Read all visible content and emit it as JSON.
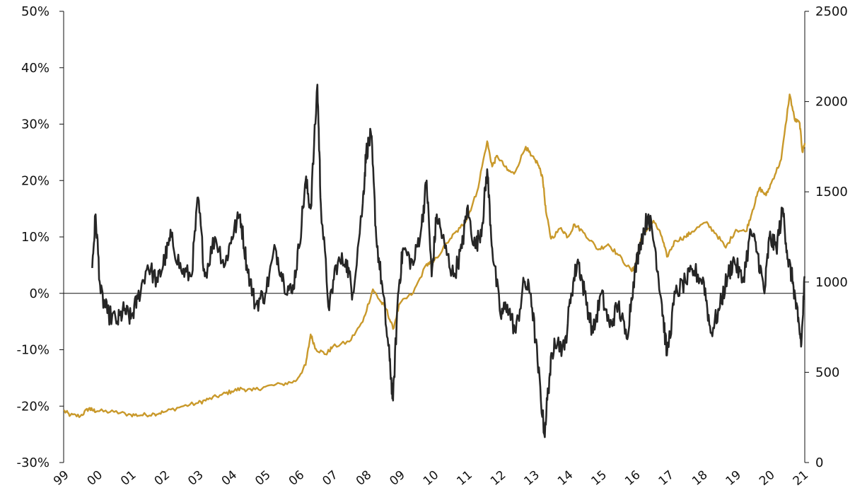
{
  "chart_data": {
    "type": "line",
    "title": "",
    "xlabel": "",
    "ylabel": "",
    "ylim_left": [
      -0.3,
      0.5
    ],
    "ylim_right": [
      0,
      2500
    ],
    "xlim": [
      1999.0,
      2021.05
    ],
    "y_left_ticks": [
      {
        "value": -0.3,
        "label": "-30%"
      },
      {
        "value": -0.2,
        "label": "-20%"
      },
      {
        "value": -0.1,
        "label": "-10%"
      },
      {
        "value": 0.0,
        "label": "0%"
      },
      {
        "value": 0.1,
        "label": "10%"
      },
      {
        "value": 0.2,
        "label": "20%"
      },
      {
        "value": 0.3,
        "label": "30%"
      },
      {
        "value": 0.4,
        "label": "40%"
      },
      {
        "value": 0.5,
        "label": "50%"
      }
    ],
    "y_right_ticks": [
      {
        "value": 0,
        "label": "0"
      },
      {
        "value": 500,
        "label": "500"
      },
      {
        "value": 1000,
        "label": "1000"
      },
      {
        "value": 1500,
        "label": "1500"
      },
      {
        "value": 2000,
        "label": "2000"
      },
      {
        "value": 2500,
        "label": "2500"
      }
    ],
    "x_ticks": [
      {
        "value": 1999,
        "label": "99"
      },
      {
        "value": 2000,
        "label": "00"
      },
      {
        "value": 2001,
        "label": "01"
      },
      {
        "value": 2002,
        "label": "02"
      },
      {
        "value": 2003,
        "label": "03"
      },
      {
        "value": 2004,
        "label": "04"
      },
      {
        "value": 2005,
        "label": "05"
      },
      {
        "value": 2006,
        "label": "06"
      },
      {
        "value": 2007,
        "label": "07"
      },
      {
        "value": 2008,
        "label": "08"
      },
      {
        "value": 2009,
        "label": "09"
      },
      {
        "value": 2010,
        "label": "10"
      },
      {
        "value": 2011,
        "label": "11"
      },
      {
        "value": 2012,
        "label": "12"
      },
      {
        "value": 2013,
        "label": "13"
      },
      {
        "value": 2014,
        "label": "14"
      },
      {
        "value": 2015,
        "label": "15"
      },
      {
        "value": 2016,
        "label": "16"
      },
      {
        "value": 2017,
        "label": "17"
      },
      {
        "value": 2018,
        "label": "18"
      },
      {
        "value": 2019,
        "label": "19"
      },
      {
        "value": 2020,
        "label": "20"
      },
      {
        "value": 2021,
        "label": "21"
      }
    ],
    "series": [
      {
        "axis": "right",
        "color": "#c9992b",
        "points": [
          [
            1999.0,
            287
          ],
          [
            1999.2,
            262
          ],
          [
            1999.5,
            258
          ],
          [
            1999.75,
            300
          ],
          [
            1999.85,
            290
          ],
          [
            2000.0,
            285
          ],
          [
            2000.5,
            280
          ],
          [
            2001.0,
            265
          ],
          [
            2001.3,
            262
          ],
          [
            2001.7,
            270
          ],
          [
            2002.0,
            280
          ],
          [
            2002.5,
            310
          ],
          [
            2003.0,
            330
          ],
          [
            2003.3,
            350
          ],
          [
            2003.7,
            375
          ],
          [
            2004.0,
            395
          ],
          [
            2004.3,
            410
          ],
          [
            2004.6,
            398
          ],
          [
            2005.0,
            420
          ],
          [
            2005.5,
            435
          ],
          [
            2005.9,
            450
          ],
          [
            2006.2,
            540
          ],
          [
            2006.35,
            710
          ],
          [
            2006.5,
            630
          ],
          [
            2006.8,
            600
          ],
          [
            2007.0,
            640
          ],
          [
            2007.5,
            670
          ],
          [
            2007.9,
            780
          ],
          [
            2008.2,
            960
          ],
          [
            2008.4,
            900
          ],
          [
            2008.6,
            850
          ],
          [
            2008.8,
            740
          ],
          [
            2009.0,
            880
          ],
          [
            2009.4,
            940
          ],
          [
            2009.8,
            1100
          ],
          [
            2010.0,
            1110
          ],
          [
            2010.5,
            1240
          ],
          [
            2010.8,
            1300
          ],
          [
            2011.0,
            1350
          ],
          [
            2011.3,
            1500
          ],
          [
            2011.6,
            1780
          ],
          [
            2011.75,
            1640
          ],
          [
            2011.9,
            1700
          ],
          [
            2012.2,
            1620
          ],
          [
            2012.4,
            1600
          ],
          [
            2012.75,
            1750
          ],
          [
            2012.9,
            1700
          ],
          [
            2013.1,
            1660
          ],
          [
            2013.25,
            1580
          ],
          [
            2013.35,
            1390
          ],
          [
            2013.5,
            1240
          ],
          [
            2013.8,
            1300
          ],
          [
            2014.0,
            1250
          ],
          [
            2014.2,
            1320
          ],
          [
            2014.5,
            1270
          ],
          [
            2014.9,
            1180
          ],
          [
            2015.2,
            1210
          ],
          [
            2015.5,
            1150
          ],
          [
            2015.9,
            1060
          ],
          [
            2016.0,
            1090
          ],
          [
            2016.2,
            1250
          ],
          [
            2016.55,
            1340
          ],
          [
            2016.8,
            1250
          ],
          [
            2016.95,
            1140
          ],
          [
            2017.2,
            1230
          ],
          [
            2017.5,
            1250
          ],
          [
            2017.7,
            1280
          ],
          [
            2018.1,
            1330
          ],
          [
            2018.4,
            1270
          ],
          [
            2018.7,
            1190
          ],
          [
            2019.0,
            1290
          ],
          [
            2019.3,
            1280
          ],
          [
            2019.5,
            1400
          ],
          [
            2019.7,
            1520
          ],
          [
            2019.9,
            1480
          ],
          [
            2020.1,
            1570
          ],
          [
            2020.35,
            1680
          ],
          [
            2020.6,
            2040
          ],
          [
            2020.75,
            1900
          ],
          [
            2020.9,
            1880
          ],
          [
            2020.98,
            1720
          ],
          [
            2021.05,
            1770
          ]
        ]
      },
      {
        "axis": "left",
        "color": "#262626",
        "points": [
          [
            1999.85,
            0.045
          ],
          [
            1999.95,
            0.14
          ],
          [
            2000.1,
            0.0
          ],
          [
            2000.3,
            -0.035
          ],
          [
            2000.6,
            -0.05
          ],
          [
            2000.8,
            -0.03
          ],
          [
            2001.0,
            -0.045
          ],
          [
            2001.2,
            -0.01
          ],
          [
            2001.5,
            0.05
          ],
          [
            2001.8,
            0.02
          ],
          [
            2002.0,
            0.06
          ],
          [
            2002.2,
            0.1
          ],
          [
            2002.5,
            0.04
          ],
          [
            2002.8,
            0.03
          ],
          [
            2003.0,
            0.17
          ],
          [
            2003.2,
            0.03
          ],
          [
            2003.5,
            0.1
          ],
          [
            2003.8,
            0.05
          ],
          [
            2004.0,
            0.1
          ],
          [
            2004.25,
            0.14
          ],
          [
            2004.45,
            0.05
          ],
          [
            2004.7,
            -0.02
          ],
          [
            2005.0,
            0.0
          ],
          [
            2005.3,
            0.08
          ],
          [
            2005.55,
            0.02
          ],
          [
            2005.8,
            0.0
          ],
          [
            2006.0,
            0.08
          ],
          [
            2006.2,
            0.2
          ],
          [
            2006.35,
            0.15
          ],
          [
            2006.55,
            0.37
          ],
          [
            2006.65,
            0.16
          ],
          [
            2006.9,
            -0.03
          ],
          [
            2007.1,
            0.05
          ],
          [
            2007.4,
            0.06
          ],
          [
            2007.6,
            0.0
          ],
          [
            2007.9,
            0.16
          ],
          [
            2008.0,
            0.25
          ],
          [
            2008.15,
            0.28
          ],
          [
            2008.3,
            0.1
          ],
          [
            2008.5,
            0.0
          ],
          [
            2008.7,
            -0.12
          ],
          [
            2008.8,
            -0.19
          ],
          [
            2008.95,
            0.0
          ],
          [
            2009.1,
            0.08
          ],
          [
            2009.4,
            0.05
          ],
          [
            2009.65,
            0.12
          ],
          [
            2009.8,
            0.2
          ],
          [
            2009.95,
            0.03
          ],
          [
            2010.1,
            0.14
          ],
          [
            2010.35,
            0.08
          ],
          [
            2010.6,
            0.03
          ],
          [
            2010.85,
            0.08
          ],
          [
            2011.0,
            0.15
          ],
          [
            2011.25,
            0.08
          ],
          [
            2011.45,
            0.12
          ],
          [
            2011.6,
            0.22
          ],
          [
            2011.75,
            0.08
          ],
          [
            2012.0,
            -0.04
          ],
          [
            2012.2,
            -0.02
          ],
          [
            2012.45,
            -0.07
          ],
          [
            2012.7,
            0.02
          ],
          [
            2012.9,
            0.0
          ],
          [
            2013.1,
            -0.12
          ],
          [
            2013.3,
            -0.25
          ],
          [
            2013.45,
            -0.15
          ],
          [
            2013.6,
            -0.08
          ],
          [
            2013.9,
            -0.1
          ],
          [
            2014.1,
            0.0
          ],
          [
            2014.3,
            0.06
          ],
          [
            2014.5,
            0.0
          ],
          [
            2014.75,
            -0.07
          ],
          [
            2015.0,
            0.0
          ],
          [
            2015.25,
            -0.06
          ],
          [
            2015.5,
            -0.02
          ],
          [
            2015.75,
            -0.08
          ],
          [
            2015.95,
            0.02
          ],
          [
            2016.15,
            0.09
          ],
          [
            2016.4,
            0.14
          ],
          [
            2016.6,
            0.08
          ],
          [
            2016.8,
            -0.02
          ],
          [
            2016.95,
            -0.11
          ],
          [
            2017.2,
            0.0
          ],
          [
            2017.5,
            0.02
          ],
          [
            2017.75,
            0.04
          ],
          [
            2018.05,
            0.02
          ],
          [
            2018.25,
            -0.07
          ],
          [
            2018.5,
            -0.03
          ],
          [
            2018.75,
            0.03
          ],
          [
            2018.95,
            0.06
          ],
          [
            2019.2,
            0.02
          ],
          [
            2019.45,
            0.11
          ],
          [
            2019.65,
            0.07
          ],
          [
            2019.85,
            0.0
          ],
          [
            2020.0,
            0.1
          ],
          [
            2020.2,
            0.08
          ],
          [
            2020.4,
            0.15
          ],
          [
            2020.55,
            0.06
          ],
          [
            2020.7,
            0.02
          ],
          [
            2020.85,
            -0.05
          ],
          [
            2020.95,
            -0.09
          ],
          [
            2021.05,
            0.03
          ]
        ]
      }
    ]
  }
}
